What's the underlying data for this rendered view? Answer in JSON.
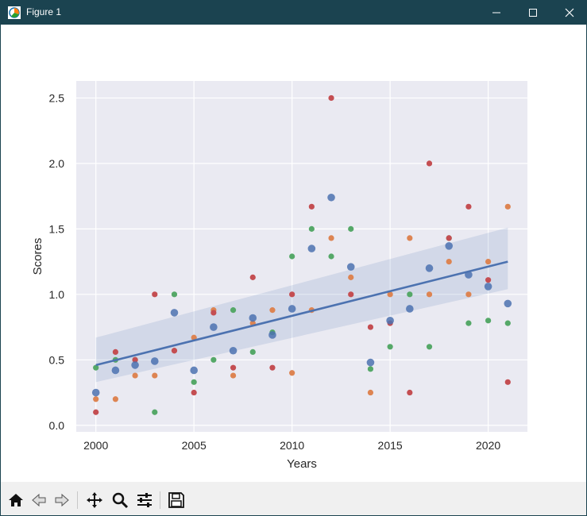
{
  "window": {
    "title": "Figure 1"
  },
  "toolbar": {
    "buttons": [
      {
        "name": "home-icon"
      },
      {
        "name": "back-icon"
      },
      {
        "name": "forward-icon"
      },
      {
        "name": "pan-icon"
      },
      {
        "name": "zoom-icon"
      },
      {
        "name": "configure-subplots-icon"
      },
      {
        "name": "save-icon"
      }
    ]
  },
  "colors": {
    "titlebar": "#1b4350",
    "plot_bg": "#eaeaf2",
    "regression_points": "#4c72b0",
    "regression_line": "#4c72b0",
    "series": [
      "#dd8452",
      "#55a868",
      "#c44e52"
    ]
  },
  "chart_data": {
    "type": "scatter",
    "title": "",
    "xlabel": "Years",
    "ylabel": "Scores",
    "xlim": [
      1999,
      2022
    ],
    "ylim": [
      -0.05,
      2.63
    ],
    "xticks": [
      2000,
      2005,
      2010,
      2015,
      2020
    ],
    "xtick_labels": [
      "2000",
      "2005",
      "2010",
      "2015",
      "2020"
    ],
    "yticks": [
      0.0,
      0.5,
      1.0,
      1.5,
      2.0,
      2.5
    ],
    "ytick_labels": [
      "0.0",
      "0.5",
      "1.0",
      "1.5",
      "2.0",
      "2.5"
    ],
    "grid": true,
    "legend": "none",
    "x": [
      2000,
      2001,
      2002,
      2003,
      2004,
      2005,
      2006,
      2007,
      2008,
      2009,
      2010,
      2011,
      2012,
      2013,
      2014,
      2015,
      2016,
      2017,
      2018,
      2019,
      2020,
      2021
    ],
    "regression": {
      "points": [
        0.25,
        0.42,
        0.46,
        0.49,
        0.86,
        0.42,
        0.75,
        0.57,
        0.82,
        0.69,
        0.89,
        1.35,
        1.74,
        1.21,
        0.48,
        0.8,
        0.89,
        1.2,
        1.37,
        1.15,
        1.06,
        0.93
      ],
      "line": {
        "x": [
          2000,
          2021
        ],
        "y": [
          0.46,
          1.25
        ]
      },
      "ci_lower": [
        0.33,
        1.04
      ],
      "ci_upper": [
        0.67,
        1.51
      ]
    },
    "series": [
      {
        "values": [
          0.2,
          0.2,
          0.38,
          0.38,
          0.57,
          0.67,
          0.88,
          0.38,
          0.78,
          0.88,
          0.4,
          0.88,
          1.43,
          1.13,
          0.25,
          1.0,
          1.43,
          1.0,
          1.25,
          1.0,
          1.25,
          1.67
        ]
      },
      {
        "values": [
          0.44,
          0.5,
          0.5,
          0.1,
          1.0,
          0.33,
          0.5,
          0.88,
          0.56,
          0.71,
          1.29,
          1.5,
          1.29,
          1.5,
          0.43,
          0.6,
          1.0,
          0.6,
          1.43,
          0.78,
          0.8,
          0.78
        ]
      },
      {
        "values": [
          0.1,
          0.56,
          0.5,
          1.0,
          0.57,
          0.25,
          0.86,
          0.44,
          1.13,
          0.44,
          1.0,
          1.67,
          2.5,
          1.0,
          0.75,
          0.78,
          0.25,
          2.0,
          1.43,
          1.67,
          1.11,
          0.33
        ]
      }
    ]
  }
}
